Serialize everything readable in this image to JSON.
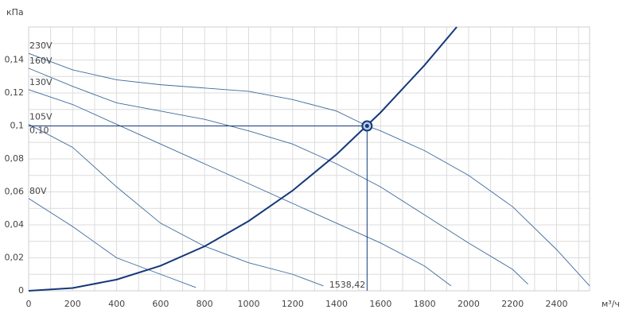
{
  "chart_data": {
    "type": "line",
    "y_label": "кПа",
    "x_label": "м³/ч",
    "xlim": [
      0,
      2550
    ],
    "ylim": [
      0,
      0.16
    ],
    "xticks": [
      0,
      200,
      400,
      600,
      800,
      1000,
      1200,
      1400,
      1600,
      1800,
      2000,
      2200,
      2400
    ],
    "yticks": [
      0,
      {
        "value": 0.02,
        "label": "0,02"
      },
      {
        "value": 0.04,
        "label": "0,04"
      },
      {
        "value": 0.06,
        "label": "0,06"
      },
      {
        "value": 0.08,
        "label": "0,08"
      },
      {
        "value": 0.1,
        "label": "0,1"
      },
      {
        "value": 0.12,
        "label": "0,12"
      },
      {
        "value": 0.14,
        "label": "0,14"
      }
    ],
    "grid": true,
    "series": [
      {
        "name": "230V",
        "color": "#3d6b9c",
        "x": [
          0,
          200,
          400,
          600,
          800,
          1000,
          1200,
          1400,
          1538.42,
          1600,
          1800,
          2000,
          2200,
          2400,
          2550
        ],
        "values": [
          0.144,
          0.134,
          0.128,
          0.125,
          0.123,
          0.121,
          0.116,
          0.109,
          0.1,
          0.097,
          0.085,
          0.07,
          0.051,
          0.025,
          0.003
        ]
      },
      {
        "name": "160V",
        "color": "#3d6b9c",
        "x": [
          0,
          200,
          400,
          600,
          800,
          1000,
          1200,
          1400,
          1600,
          1800,
          2000,
          2200,
          2270
        ],
        "values": [
          0.135,
          0.124,
          0.114,
          0.109,
          0.104,
          0.097,
          0.089,
          0.077,
          0.063,
          0.046,
          0.029,
          0.013,
          0.004
        ]
      },
      {
        "name": "130V",
        "color": "#3d6b9c",
        "x": [
          0,
          200,
          400,
          600,
          800,
          1000,
          1200,
          1400,
          1600,
          1800,
          1920
        ],
        "values": [
          0.122,
          0.113,
          0.101,
          0.089,
          0.077,
          0.065,
          0.053,
          0.041,
          0.029,
          0.015,
          0.003
        ]
      },
      {
        "name": "105V",
        "color": "#3d6b9c",
        "x": [
          0,
          200,
          400,
          600,
          800,
          1000,
          1200,
          1340
        ],
        "values": [
          0.101,
          0.087,
          0.063,
          0.041,
          0.027,
          0.017,
          0.01,
          0.003
        ]
      },
      {
        "name": "80V",
        "color": "#3d6b9c",
        "x": [
          0,
          200,
          400,
          600,
          760
        ],
        "values": [
          0.056,
          0.039,
          0.02,
          0.01,
          0.002
        ]
      }
    ],
    "system_curve": {
      "color": "#15397a",
      "x": [
        0,
        200,
        400,
        600,
        800,
        1000,
        1200,
        1400,
        1600,
        1800,
        1946
      ],
      "values": [
        0,
        0.0017,
        0.0068,
        0.0152,
        0.027,
        0.0423,
        0.0608,
        0.0828,
        0.1082,
        0.1369,
        0.16
      ]
    },
    "operating_point": {
      "x": 1538.42,
      "y": 0.1,
      "x_label": "1538,42",
      "y_label": "0,10",
      "color": "#15397a"
    }
  }
}
